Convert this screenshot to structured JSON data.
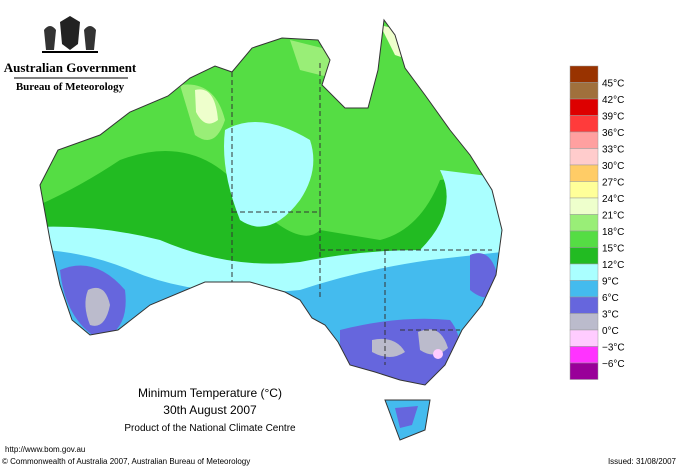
{
  "header": {
    "government": "Australian Government",
    "agency": "Bureau of Meteorology"
  },
  "map": {
    "title": "Minimum Temperature (°C)",
    "date": "30th August 2007",
    "product": "Product of the National Climate Centre"
  },
  "legend": {
    "labels": [
      "45°C",
      "42°C",
      "39°C",
      "36°C",
      "33°C",
      "30°C",
      "27°C",
      "24°C",
      "21°C",
      "18°C",
      "15°C",
      "12°C",
      "9°C",
      "6°C",
      "3°C",
      "0°C",
      "−3°C",
      "−6°C"
    ],
    "colors": [
      "#993300",
      "#a0703c",
      "#dd0000",
      "#ff3b3b",
      "#ffa0a0",
      "#ffcccc",
      "#ffcc66",
      "#ffff99",
      "#eeffcc",
      "#99ee77",
      "#55dd44",
      "#22bb22",
      "#aaffff",
      "#44bbee",
      "#6666dd",
      "#bbbbcc",
      "#ffccff",
      "#ff33ff",
      "#990099"
    ]
  },
  "footer": {
    "url": "http://www.bom.gov.au",
    "copyright": "© Commonwealth of Australia 2007, Australian Bureau of Meteorology",
    "issued": "Issued: 31/08/2007"
  }
}
